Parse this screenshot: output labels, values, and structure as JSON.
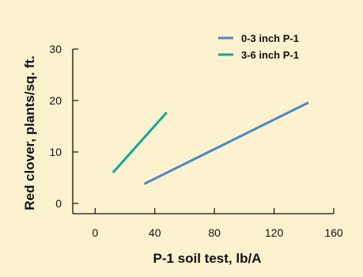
{
  "chart_data": {
    "type": "line",
    "title": "",
    "xlabel": "P-1 soil test, lb/A",
    "ylabel": "Red clover, plants/sq. ft.",
    "xlim": [
      -15,
      160
    ],
    "ylim": [
      -2,
      30
    ],
    "xticks": [
      0,
      40,
      80,
      120,
      160
    ],
    "yticks": [
      0,
      10,
      20,
      30
    ],
    "grid": false,
    "legend_position": "top-right",
    "series": [
      {
        "name": "0-3 inch P-1",
        "color": "#4f86c6",
        "x": [
          33,
          143
        ],
        "y": [
          3.8,
          19.6
        ]
      },
      {
        "name": "3-6 inch P-1",
        "color": "#13a89e",
        "x": [
          12,
          48
        ],
        "y": [
          6,
          17.7
        ]
      }
    ]
  }
}
